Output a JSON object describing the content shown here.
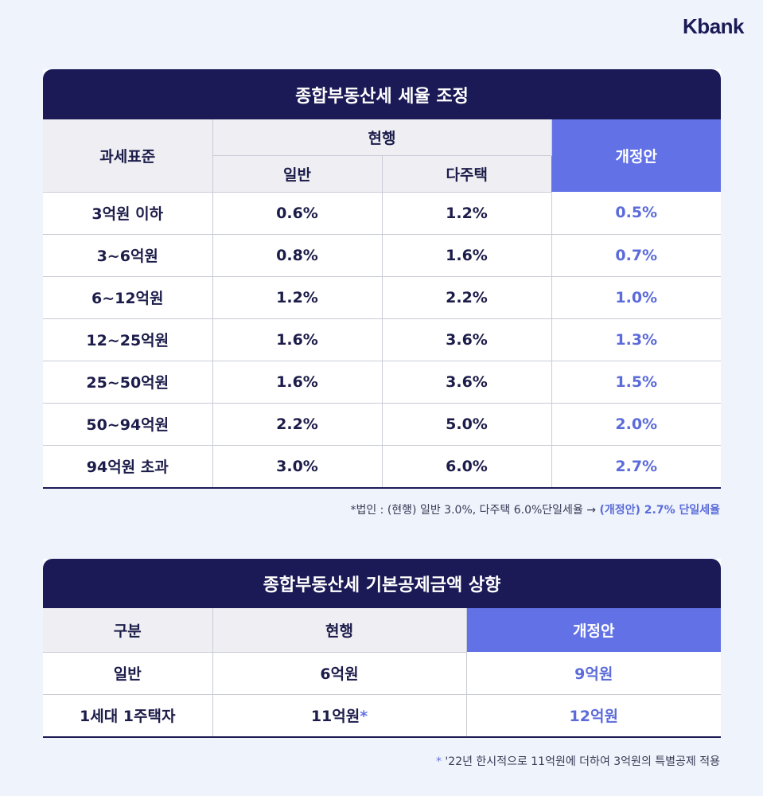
{
  "brand": {
    "logo_text": "Kbank"
  },
  "rate_table": {
    "title": "종합부동산세 세율 조정",
    "headers": {
      "base": "과세표준",
      "current": "현행",
      "general": "일반",
      "multi": "다주택",
      "revised": "개정안"
    },
    "rows": [
      {
        "bracket": "3억원 이하",
        "general": "0.6%",
        "multi": "1.2%",
        "revised": "0.5%"
      },
      {
        "bracket": "3~6억원",
        "general": "0.8%",
        "multi": "1.6%",
        "revised": "0.7%"
      },
      {
        "bracket": "6~12억원",
        "general": "1.2%",
        "multi": "2.2%",
        "revised": "1.0%"
      },
      {
        "bracket": "12~25억원",
        "general": "1.6%",
        "multi": "3.6%",
        "revised": "1.3%"
      },
      {
        "bracket": "25~50억원",
        "general": "1.6%",
        "multi": "3.6%",
        "revised": "1.5%"
      },
      {
        "bracket": "50~94억원",
        "general": "2.2%",
        "multi": "5.0%",
        "revised": "2.0%"
      },
      {
        "bracket": "94억원 초과",
        "general": "3.0%",
        "multi": "6.0%",
        "revised": "2.7%"
      }
    ],
    "note_prefix": "*법인 : (현행) 일반 3.0%, 다주택 6.0%단일세율 → ",
    "note_accent": "(개정안) 2.7% 단일세율"
  },
  "deduction_table": {
    "title": "종합부동산세 기본공제금액 상향",
    "headers": {
      "category": "구분",
      "current": "현행",
      "revised": "개정안"
    },
    "rows": [
      {
        "category": "일반",
        "current": "6억원",
        "star": "",
        "revised": "9억원"
      },
      {
        "category": "1세대 1주택자",
        "current": "11억원",
        "star": "*",
        "revised": "12억원"
      }
    ],
    "note_star": "*",
    "note_text": " '22년 한시적으로 11억원에 더하여 3억원의 특별공제 적용"
  },
  "colors": {
    "navy": "#1b1a56",
    "accent": "#6272e6",
    "background": "#eef3fc",
    "header_gray": "#efeff3"
  }
}
